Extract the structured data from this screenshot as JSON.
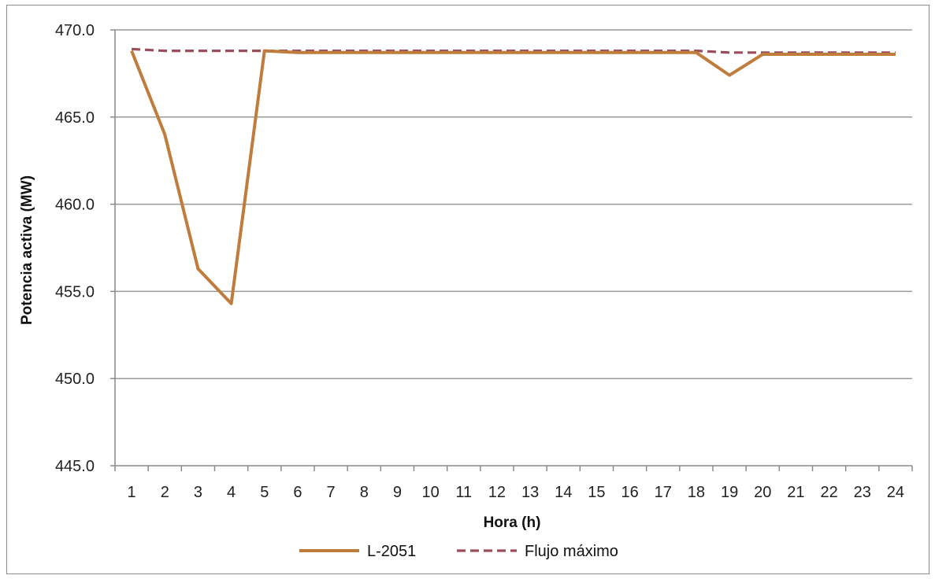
{
  "chart_data": {
    "type": "line",
    "xlabel": "Hora (h)",
    "ylabel": "Potencia activa (MW)",
    "categories": [
      "1",
      "2",
      "3",
      "4",
      "5",
      "6",
      "7",
      "8",
      "9",
      "10",
      "11",
      "12",
      "13",
      "14",
      "15",
      "16",
      "17",
      "18",
      "19",
      "20",
      "21",
      "22",
      "23",
      "24"
    ],
    "ylim": [
      445.0,
      470.0
    ],
    "yticks": [
      "445.0",
      "450.0",
      "455.0",
      "460.0",
      "465.0",
      "470.0"
    ],
    "grid": true,
    "legend_position": "bottom",
    "series": [
      {
        "name": "L-2051",
        "color": "#c07c3c",
        "style": "solid",
        "values": [
          468.8,
          464.0,
          456.3,
          454.3,
          468.8,
          468.7,
          468.7,
          468.7,
          468.7,
          468.7,
          468.7,
          468.7,
          468.7,
          468.7,
          468.7,
          468.7,
          468.7,
          468.7,
          467.4,
          468.6,
          468.6,
          468.6,
          468.6,
          468.6
        ]
      },
      {
        "name": "Flujo máximo",
        "color": "#9b4d5c",
        "style": "dashed",
        "values": [
          468.9,
          468.8,
          468.8,
          468.8,
          468.8,
          468.8,
          468.8,
          468.8,
          468.8,
          468.8,
          468.8,
          468.8,
          468.8,
          468.8,
          468.8,
          468.8,
          468.8,
          468.8,
          468.7,
          468.7,
          468.7,
          468.7,
          468.7,
          468.7
        ]
      }
    ]
  }
}
